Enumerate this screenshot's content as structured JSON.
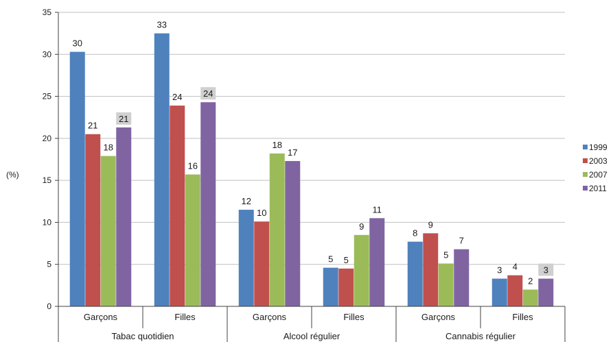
{
  "chart_data": {
    "type": "bar",
    "ylabel": "(%)",
    "ylim": [
      0,
      35
    ],
    "yticks": [
      0,
      5,
      10,
      15,
      20,
      25,
      30,
      35
    ],
    "grid": true,
    "legend_position": "right",
    "groups": [
      {
        "label": "Tabac quotidien",
        "subcategories": [
          "Garçons",
          "Filles"
        ]
      },
      {
        "label": "Alcool régulier",
        "subcategories": [
          "Garçons",
          "Filles"
        ]
      },
      {
        "label": "Cannabis régulier",
        "subcategories": [
          "Garçons",
          "Filles"
        ]
      }
    ],
    "series": [
      {
        "name": "1999",
        "color": "#4f81bd",
        "values": [
          30.3,
          32.5,
          11.5,
          4.6,
          7.7,
          3.3
        ],
        "labels": [
          "30",
          "33",
          "12",
          "5",
          "8",
          "3"
        ]
      },
      {
        "name": "2003",
        "color": "#c0504d",
        "values": [
          20.5,
          23.9,
          10.1,
          4.5,
          8.7,
          3.7
        ],
        "labels": [
          "21",
          "24",
          "10",
          "5",
          "9",
          "4"
        ]
      },
      {
        "name": "2007",
        "color": "#9bbb59",
        "values": [
          17.9,
          15.7,
          18.2,
          8.5,
          5.1,
          2.0
        ],
        "labels": [
          "18",
          "16",
          "18",
          "9",
          "5",
          "2"
        ]
      },
      {
        "name": "2011",
        "color": "#8064a2",
        "values": [
          21.3,
          24.3,
          17.3,
          10.5,
          6.8,
          3.3
        ],
        "labels": [
          "21",
          "24",
          "17",
          "11",
          "7",
          "3"
        ],
        "highlighted_labels": [
          0,
          1,
          5
        ]
      }
    ]
  }
}
